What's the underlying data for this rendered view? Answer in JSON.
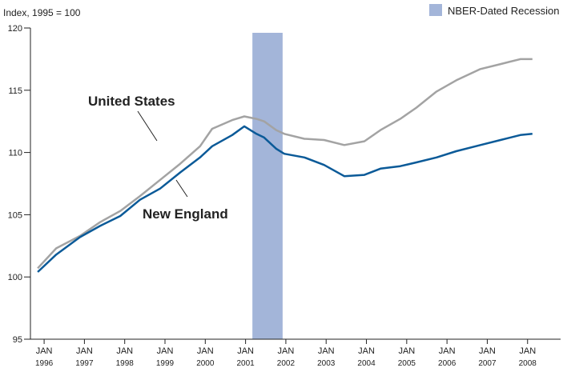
{
  "chart_data": {
    "type": "line",
    "ylabel": "Index, 1995 = 100",
    "x": [
      1995.84,
      1996.3,
      1996.89,
      1997.39,
      1997.89,
      1998.38,
      1998.88,
      1999.38,
      1999.87,
      2000.17,
      2000.67,
      2000.97,
      2001.27,
      2001.46,
      2001.76,
      2001.96,
      2002.46,
      2002.95,
      2003.45,
      2003.95,
      2004.35,
      2004.84,
      2005.24,
      2005.74,
      2006.23,
      2006.83,
      2007.33,
      2007.82,
      2008.12
    ],
    "series": [
      {
        "name": "United States",
        "color": "#a3a3a3",
        "values": [
          100.7,
          102.3,
          103.3,
          104.4,
          105.3,
          106.5,
          107.8,
          109.1,
          110.5,
          111.9,
          112.6,
          112.9,
          112.7,
          112.5,
          111.8,
          111.5,
          111.1,
          111.0,
          110.6,
          110.9,
          111.8,
          112.7,
          113.6,
          114.9,
          115.8,
          116.7,
          117.1,
          117.5,
          117.5
        ]
      },
      {
        "name": "New England",
        "color": "#0b5a98",
        "values": [
          100.4,
          101.8,
          103.2,
          104.1,
          104.9,
          106.2,
          107.1,
          108.4,
          109.6,
          110.5,
          111.4,
          112.1,
          111.5,
          111.2,
          110.3,
          109.9,
          109.6,
          109.0,
          108.1,
          108.2,
          108.7,
          108.9,
          109.2,
          109.6,
          110.1,
          110.6,
          111.0,
          111.4,
          111.5
        ]
      }
    ],
    "recession": {
      "label": "NBER-Dated Recession",
      "color": "#a3b5d9",
      "start": 2001.17,
      "end": 2001.92
    },
    "xlim": [
      1995.66,
      2008.82
    ],
    "xticks": [
      {
        "value": 1996,
        "label": "JAN 1996"
      },
      {
        "value": 1997,
        "label": "JAN 1997"
      },
      {
        "value": 1998,
        "label": "JAN 1998"
      },
      {
        "value": 1999,
        "label": "JAN 1999"
      },
      {
        "value": 2000,
        "label": "JAN 2000"
      },
      {
        "value": 2001,
        "label": "JAN 2001"
      },
      {
        "value": 2002,
        "label": "JAN 2002"
      },
      {
        "value": 2003,
        "label": "JAN 2003"
      },
      {
        "value": 2004,
        "label": "JAN 2004"
      },
      {
        "value": 2005,
        "label": "JAN 2005"
      },
      {
        "value": 2006,
        "label": "JAN 2006"
      },
      {
        "value": 2007,
        "label": "JAN 2007"
      },
      {
        "value": 2008,
        "label": "JAN 2008"
      }
    ],
    "ylim": [
      95,
      120
    ],
    "yticks": [
      95,
      100,
      105,
      110,
      115,
      120
    ],
    "grid": false
  }
}
